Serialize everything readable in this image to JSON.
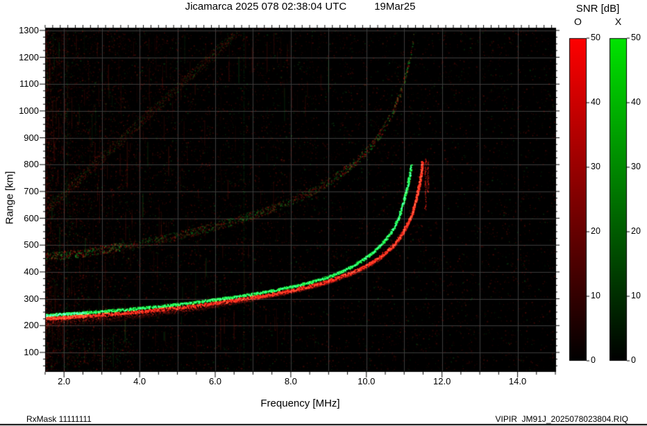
{
  "title": {
    "main": "Jicamarca 2025 078 02:38:04 UTC",
    "date": "19Mar25"
  },
  "footer": {
    "left": "RxMask 11111111",
    "right": "VIPIR  JM91J_2025078023804.RIQ"
  },
  "colorbar": {
    "title": "SNR [dB]",
    "ticks": [
      0,
      10,
      20,
      30,
      40,
      50
    ],
    "bars": [
      {
        "label": "O",
        "color_top": "#ff0000"
      },
      {
        "label": "X",
        "color_top": "#00e400"
      }
    ]
  },
  "chart_data": {
    "type": "heatmap",
    "title": "Jicamarca 2025 078 02:38:04 UTC",
    "subtitle": "19Mar25",
    "xlabel": "Frequency [MHz]",
    "ylabel": "Range [km]",
    "xlim": [
      1.5,
      15.0
    ],
    "ylim": [
      30,
      1310
    ],
    "xticks": [
      2,
      4,
      6,
      8,
      10,
      12,
      14
    ],
    "xtick_labels": [
      "2.0",
      "4.0",
      "6.0",
      "8.0",
      "10.0",
      "12.0",
      "14.0"
    ],
    "yticks": [
      100,
      200,
      300,
      400,
      500,
      600,
      700,
      800,
      900,
      1000,
      1100,
      1200,
      1300
    ],
    "grid": true,
    "background": "#000000",
    "snr_scale": {
      "min": 0,
      "max": 50,
      "units": "dB",
      "o_color": "#ff0000",
      "x_color": "#00e400"
    },
    "o_trace": {
      "label": "O",
      "color": "#ff2014",
      "points": [
        [
          1.5,
          228
        ],
        [
          2.0,
          232
        ],
        [
          2.5,
          237
        ],
        [
          3.0,
          242
        ],
        [
          3.5,
          248
        ],
        [
          4.0,
          254
        ],
        [
          4.5,
          261
        ],
        [
          5.0,
          268
        ],
        [
          5.5,
          276
        ],
        [
          6.0,
          286
        ],
        [
          6.5,
          296
        ],
        [
          7.0,
          307
        ],
        [
          7.5,
          319
        ],
        [
          8.0,
          333
        ],
        [
          8.5,
          349
        ],
        [
          9.0,
          369
        ],
        [
          9.5,
          394
        ],
        [
          9.8,
          412
        ],
        [
          10.1,
          434
        ],
        [
          10.4,
          462
        ],
        [
          10.7,
          500
        ],
        [
          10.9,
          535
        ],
        [
          11.05,
          572
        ],
        [
          11.2,
          620
        ],
        [
          11.3,
          668
        ],
        [
          11.38,
          718
        ],
        [
          11.44,
          768
        ],
        [
          11.48,
          815
        ]
      ]
    },
    "x_trace": {
      "label": "X",
      "color": "#17ff3c",
      "points": [
        [
          1.5,
          240
        ],
        [
          2.0,
          244
        ],
        [
          2.5,
          249
        ],
        [
          3.0,
          254
        ],
        [
          3.5,
          260
        ],
        [
          4.0,
          266
        ],
        [
          4.5,
          273
        ],
        [
          5.0,
          280
        ],
        [
          5.5,
          288
        ],
        [
          6.0,
          298
        ],
        [
          6.5,
          308
        ],
        [
          7.0,
          319
        ],
        [
          7.5,
          331
        ],
        [
          8.0,
          345
        ],
        [
          8.5,
          362
        ],
        [
          9.0,
          383
        ],
        [
          9.3,
          400
        ],
        [
          9.6,
          420
        ],
        [
          9.9,
          446
        ],
        [
          10.2,
          478
        ],
        [
          10.5,
          520
        ],
        [
          10.7,
          560
        ],
        [
          10.85,
          605
        ],
        [
          10.95,
          650
        ],
        [
          11.05,
          700
        ],
        [
          11.12,
          750
        ],
        [
          11.18,
          800
        ]
      ]
    },
    "second_hop": {
      "multiplier": 2,
      "max_frequency": 11.35
    },
    "oblique_bands": [
      {
        "from": [
          1.5,
          630
        ],
        "to": [
          6.6,
          1300
        ]
      }
    ],
    "asymptote_echoes": [
      {
        "f": 11.55,
        "r0": 630,
        "r1": 825
      },
      {
        "f": 11.62,
        "r0": 700,
        "r1": 815
      }
    ],
    "interference_lines": [
      {
        "f": 2.08,
        "color": "#14c83c",
        "alpha": 0.15
      },
      {
        "f": 6.75,
        "color": "#14c83c",
        "alpha": 0.2
      },
      {
        "f": 3.05,
        "color": "#c8281e",
        "alpha": 0.1
      }
    ],
    "noise": {
      "seed": 20250319,
      "red_speckles": 14000,
      "green_speckles": 3000,
      "streaks": 260
    }
  }
}
